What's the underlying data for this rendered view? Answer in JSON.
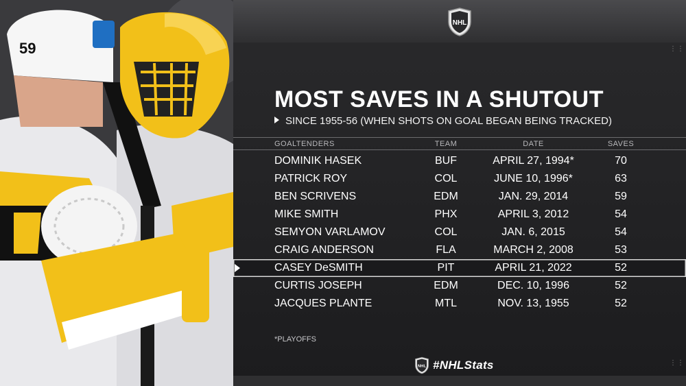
{
  "header": {
    "logo_icon": "nhl-shield-icon"
  },
  "title": "MOST SAVES IN A SHUTOUT",
  "subtitle": "SINCE 1955-56 (WHEN SHOTS ON GOAL BEGAN BEING TRACKED)",
  "photo": {
    "helmet_number": "59"
  },
  "table": {
    "columns": [
      "GOALTENDERS",
      "TEAM",
      "DATE",
      "SAVES"
    ],
    "rows": [
      {
        "name": "DOMINIK HASEK",
        "team": "BUF",
        "date": "APRIL 27, 1994*",
        "saves": "70"
      },
      {
        "name": "PATRICK ROY",
        "team": "COL",
        "date": "JUNE 10, 1996*",
        "saves": "63"
      },
      {
        "name": "BEN SCRIVENS",
        "team": "EDM",
        "date": "JAN. 29, 2014",
        "saves": "59"
      },
      {
        "name": "MIKE SMITH",
        "team": "PHX",
        "date": "APRIL 3, 2012",
        "saves": "54"
      },
      {
        "name": "SEMYON VARLAMOV",
        "team": "COL",
        "date": "JAN. 6, 2015",
        "saves": "54"
      },
      {
        "name": "CRAIG ANDERSON",
        "team": "FLA",
        "date": "MARCH 2, 2008",
        "saves": "53"
      },
      {
        "name": "CASEY DeSMITH",
        "team": "PIT",
        "date": "APRIL 21, 2022",
        "saves": "52"
      },
      {
        "name": "CURTIS JOSEPH",
        "team": "EDM",
        "date": "DEC. 10, 1996",
        "saves": "52"
      },
      {
        "name": "JACQUES PLANTE",
        "team": "MTL",
        "date": "NOV. 13, 1955",
        "saves": "52"
      }
    ],
    "highlighted_row": 6
  },
  "footnote": "*PLAYOFFS",
  "hashtag": "#NHLStats",
  "colors": {
    "gold": "#f2c019",
    "panel": "#1d1d1f",
    "accent_white": "#ffffff"
  }
}
